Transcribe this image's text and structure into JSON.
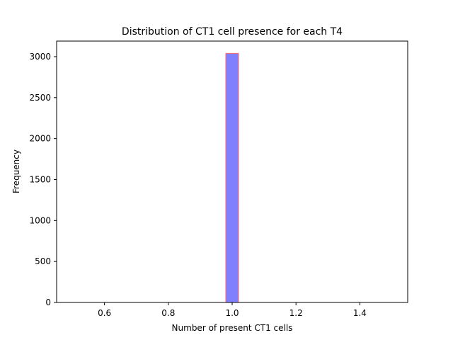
{
  "chart_data": {
    "type": "bar",
    "title": "Distribution of CT1 cell presence for each T4",
    "xlabel": "Number of present CT1 cells",
    "ylabel": "Frequency",
    "xlim": [
      0.45,
      1.55
    ],
    "ylim": [
      0,
      3190
    ],
    "xticks": [
      0.6,
      0.8,
      1.0,
      1.2,
      1.4
    ],
    "xtick_labels": [
      "0.6",
      "0.8",
      "1.0",
      "1.2",
      "1.4"
    ],
    "yticks": [
      0,
      500,
      1000,
      1500,
      2000,
      2500,
      3000
    ],
    "ytick_labels": [
      "0",
      "500",
      "1000",
      "1500",
      "2000",
      "2500",
      "3000"
    ],
    "bins": {
      "start": 0.5,
      "end": 1.5,
      "count": 25
    },
    "values": [
      0,
      0,
      0,
      0,
      0,
      0,
      0,
      0,
      0,
      0,
      0,
      0,
      3040,
      0,
      0,
      0,
      0,
      0,
      0,
      0,
      0,
      0,
      0,
      0,
      0
    ],
    "grid": false,
    "bar_fill": "#8080ff",
    "bar_edge": "#ff6b6b"
  }
}
